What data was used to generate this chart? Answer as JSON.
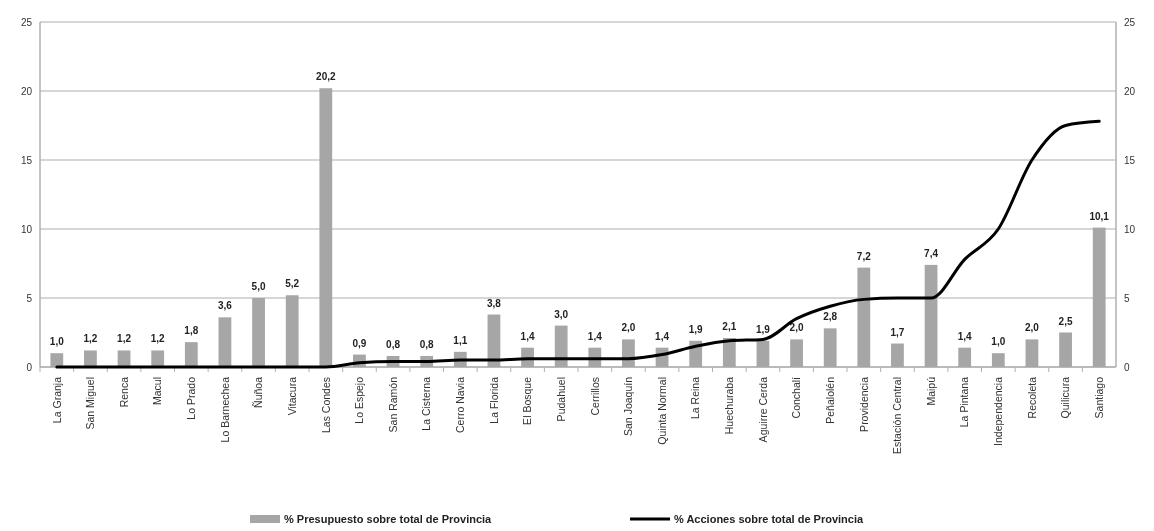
{
  "chart_data": {
    "type": "bar",
    "categories": [
      "La Granja",
      "San Miguel",
      "Renca",
      "Macul",
      "Lo Prado",
      "Lo Barnechea",
      "Ñuñoa",
      "Vitacura",
      "Las Condes",
      "Lo Espejo",
      "San Ramón",
      "La Cisterna",
      "Cerro Navia",
      "La Florida",
      "El Bosque",
      "Pudahuel",
      "Cerrillos",
      "San Joaquín",
      "Quinta Normal",
      "La Reina",
      "Huechuraba",
      "Aguirre Cerda",
      "Conchalí",
      "Peñalolén",
      "Providencia",
      "Estación Central",
      "Maipú",
      "La Pintana",
      "Independencia",
      "Recoleta",
      "Quilicura",
      "Santiago"
    ],
    "series": [
      {
        "name": "% Presupuesto sobre total de Provincia",
        "color": "#a6a6a6",
        "values": [
          1.0,
          1.2,
          1.2,
          1.2,
          1.8,
          3.6,
          5.0,
          5.2,
          20.2,
          0.9,
          0.8,
          0.8,
          1.1,
          3.8,
          1.4,
          3.0,
          1.4,
          2.0,
          1.4,
          1.9,
          2.1,
          1.9,
          2.0,
          2.8,
          7.2,
          1.7,
          7.4,
          1.4,
          1.0,
          2.0,
          2.5,
          10.1
        ],
        "value_labels": [
          "1,0",
          "1,2",
          "1,2",
          "1,2",
          "1,8",
          "3,6",
          "5,0",
          "5,2",
          "20,2",
          "0,9",
          "0,8",
          "0,8",
          "1,1",
          "3,8",
          "1,4",
          "3,0",
          "1,4",
          "2,0",
          "1,4",
          "1,9",
          "2,1",
          "1,9",
          "2,0",
          "2,8",
          "7,2",
          "1,7",
          "7,4",
          "1,4",
          "1,0",
          "2,0",
          "2,5",
          "10,1"
        ]
      },
      {
        "name": "% Acciones sobre total de Provincia",
        "type": "line",
        "color": "#000000",
        "values": [
          0,
          0,
          0,
          0,
          0,
          0,
          0,
          0,
          0,
          0.3,
          0.4,
          0.4,
          0.5,
          0.5,
          0.6,
          0.6,
          0.6,
          0.6,
          0.9,
          1.5,
          1.9,
          2.0,
          3.5,
          4.4,
          4.9,
          5.0,
          5.0,
          7.8,
          10.0,
          15.0,
          17.5,
          17.8
        ]
      }
    ],
    "ylim": [
      0,
      25
    ],
    "yticks": [
      0,
      5,
      10,
      15,
      20,
      25
    ],
    "y2lim": [
      0,
      25
    ],
    "y2ticks": [
      0,
      5,
      10,
      15,
      20,
      25
    ],
    "grid": "y",
    "legend": "bottom",
    "marker": "none",
    "line_style": "solid"
  }
}
